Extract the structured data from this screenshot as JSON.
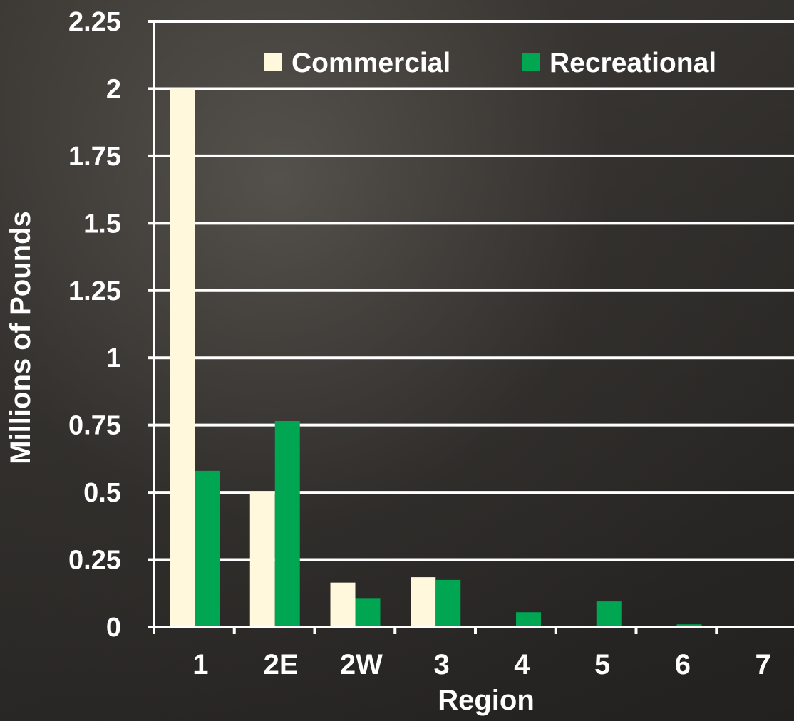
{
  "chart_data": {
    "type": "bar",
    "xlabel": "Region",
    "ylabel": "Millions of Pounds",
    "categories": [
      "1",
      "2E",
      "2W",
      "3",
      "4",
      "5",
      "6",
      "7"
    ],
    "ylim": [
      0,
      2.25
    ],
    "yticks": [
      "0",
      "0.25",
      "0.5",
      "0.75",
      "1",
      "1.25",
      "1.5",
      "1.75",
      "2",
      "2.25"
    ],
    "series": [
      {
        "name": "Commercial",
        "color": "#fff8dc",
        "values": [
          2.0,
          0.5,
          0.165,
          0.185,
          0,
          0,
          0,
          0
        ]
      },
      {
        "name": "Recreational",
        "color": "#00a651",
        "values": [
          0.58,
          0.765,
          0.105,
          0.175,
          0.055,
          0.095,
          0.01,
          0
        ]
      }
    ],
    "legend": "top-right",
    "grid": true
  }
}
